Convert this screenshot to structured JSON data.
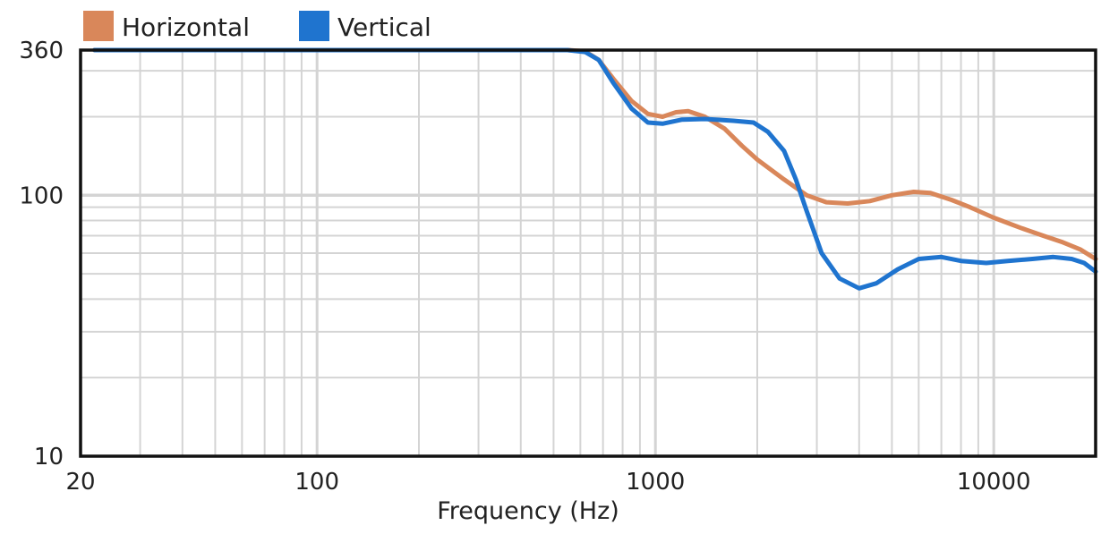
{
  "chart_data": {
    "type": "line",
    "title": "",
    "xlabel": "Frequency (Hz)",
    "ylabel": "",
    "x_scale": "log",
    "y_scale": "log",
    "xlim": [
      20,
      20000
    ],
    "ylim": [
      10,
      360
    ],
    "x_ticks": [
      {
        "value": 20,
        "label": "20"
      },
      {
        "value": 100,
        "label": "100"
      },
      {
        "value": 1000,
        "label": "1000"
      },
      {
        "value": 10000,
        "label": "10000"
      }
    ],
    "y_ticks": [
      {
        "value": 10,
        "label": "10"
      },
      {
        "value": 100,
        "label": "100"
      },
      {
        "value": 360,
        "label": "360"
      }
    ],
    "grid": true,
    "legend_position": "top-left",
    "series": [
      {
        "name": "Horizontal",
        "color": "#D9875A",
        "points": [
          [
            22,
            360
          ],
          [
            100,
            360
          ],
          [
            300,
            360
          ],
          [
            550,
            360
          ],
          [
            620,
            356
          ],
          [
            680,
            330
          ],
          [
            750,
            280
          ],
          [
            850,
            230
          ],
          [
            950,
            205
          ],
          [
            1050,
            200
          ],
          [
            1150,
            208
          ],
          [
            1250,
            210
          ],
          [
            1400,
            200
          ],
          [
            1600,
            180
          ],
          [
            1800,
            155
          ],
          [
            2000,
            137
          ],
          [
            2400,
            115
          ],
          [
            2800,
            100
          ],
          [
            3200,
            94
          ],
          [
            3700,
            93
          ],
          [
            4300,
            95
          ],
          [
            5000,
            100
          ],
          [
            5800,
            103
          ],
          [
            6500,
            102
          ],
          [
            7500,
            96
          ],
          [
            8500,
            90
          ],
          [
            10000,
            82
          ],
          [
            12000,
            75
          ],
          [
            14000,
            70
          ],
          [
            16000,
            66
          ],
          [
            18000,
            62
          ],
          [
            20000,
            57
          ]
        ]
      },
      {
        "name": "Vertical",
        "color": "#1F74CF",
        "points": [
          [
            22,
            360
          ],
          [
            100,
            360
          ],
          [
            300,
            360
          ],
          [
            550,
            360
          ],
          [
            620,
            354
          ],
          [
            680,
            330
          ],
          [
            750,
            270
          ],
          [
            850,
            215
          ],
          [
            950,
            190
          ],
          [
            1050,
            188
          ],
          [
            1200,
            195
          ],
          [
            1400,
            196
          ],
          [
            1700,
            193
          ],
          [
            1950,
            190
          ],
          [
            2150,
            175
          ],
          [
            2400,
            148
          ],
          [
            2600,
            115
          ],
          [
            2800,
            87
          ],
          [
            3100,
            60
          ],
          [
            3500,
            48
          ],
          [
            4000,
            44
          ],
          [
            4500,
            46
          ],
          [
            5200,
            52
          ],
          [
            6000,
            57
          ],
          [
            7000,
            58
          ],
          [
            8000,
            56
          ],
          [
            9500,
            55
          ],
          [
            11000,
            56
          ],
          [
            13000,
            57
          ],
          [
            15000,
            58
          ],
          [
            17000,
            57
          ],
          [
            18500,
            55
          ],
          [
            20000,
            51
          ]
        ]
      }
    ]
  }
}
